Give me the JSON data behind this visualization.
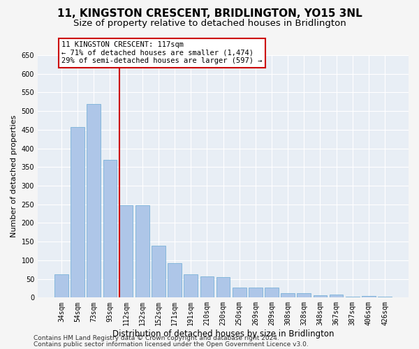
{
  "title": "11, KINGSTON CRESCENT, BRIDLINGTON, YO15 3NL",
  "subtitle": "Size of property relative to detached houses in Bridlington",
  "xlabel": "Distribution of detached houses by size in Bridlington",
  "ylabel": "Number of detached properties",
  "categories": [
    "34sqm",
    "54sqm",
    "73sqm",
    "93sqm",
    "112sqm",
    "132sqm",
    "152sqm",
    "171sqm",
    "191sqm",
    "210sqm",
    "230sqm",
    "250sqm",
    "269sqm",
    "289sqm",
    "308sqm",
    "328sqm",
    "348sqm",
    "367sqm",
    "387sqm",
    "406sqm",
    "426sqm"
  ],
  "values": [
    62,
    458,
    519,
    370,
    248,
    248,
    140,
    92,
    62,
    57,
    55,
    26,
    26,
    26,
    11,
    11,
    6,
    8,
    3,
    4,
    3
  ],
  "bar_color": "#aec6e8",
  "bar_edgecolor": "#6aaad4",
  "vline_x": 4,
  "vline_color": "#cc0000",
  "annotation_text": "11 KINGSTON CRESCENT: 117sqm\n← 71% of detached houses are smaller (1,474)\n29% of semi-detached houses are larger (597) →",
  "annotation_box_color": "#ffffff",
  "annotation_box_edgecolor": "#cc0000",
  "ylim": [
    0,
    650
  ],
  "yticks": [
    0,
    50,
    100,
    150,
    200,
    250,
    300,
    350,
    400,
    450,
    500,
    550,
    600,
    650
  ],
  "background_color": "#e8eef5",
  "grid_color": "#ffffff",
  "fig_facecolor": "#f5f5f5",
  "footer_line1": "Contains HM Land Registry data © Crown copyright and database right 2024.",
  "footer_line2": "Contains public sector information licensed under the Open Government Licence v3.0.",
  "title_fontsize": 11,
  "subtitle_fontsize": 9.5,
  "xlabel_fontsize": 8.5,
  "ylabel_fontsize": 8,
  "tick_fontsize": 7,
  "footer_fontsize": 6.5,
  "annotation_fontsize": 7.5
}
